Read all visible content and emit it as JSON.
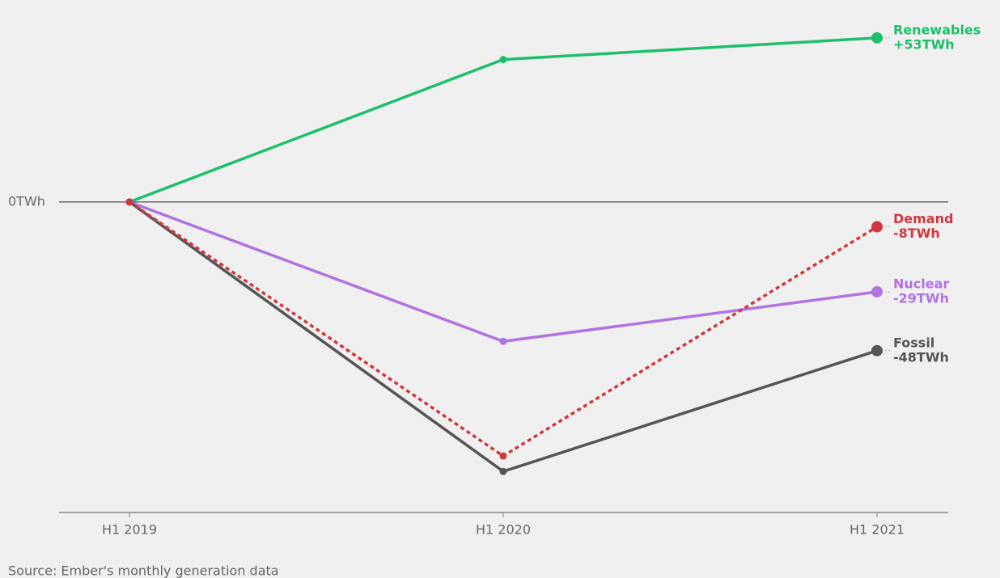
{
  "chart_data": {
    "type": "line",
    "source": "Source: Ember's monthly generation data",
    "categories": [
      "H1 2019",
      "H1 2020",
      "H1 2021"
    ],
    "series": [
      {
        "name": "Renewables",
        "color": "#1dbf6b",
        "dashed": false,
        "values": [
          0,
          46,
          53
        ],
        "value_labels": [
          null,
          null,
          "+53TWh"
        ]
      },
      {
        "name": "Demand",
        "color": "#d1373f",
        "dashed": true,
        "values": [
          0,
          -82,
          -8
        ],
        "value_labels": [
          null,
          null,
          "-8TWh"
        ]
      },
      {
        "name": "Nuclear",
        "color": "#b173e0",
        "dashed": false,
        "values": [
          0,
          -45,
          -29
        ],
        "value_labels": [
          null,
          null,
          "-29TWh"
        ]
      },
      {
        "name": "Fossil",
        "color": "#555555",
        "dashed": false,
        "values": [
          0,
          -87,
          -48
        ],
        "value_labels": [
          null,
          null,
          "-48TWh"
        ]
      }
    ],
    "ylim": [
      -100,
      60
    ],
    "yticks": [
      {
        "value": 0,
        "label": "0TWh"
      }
    ]
  }
}
